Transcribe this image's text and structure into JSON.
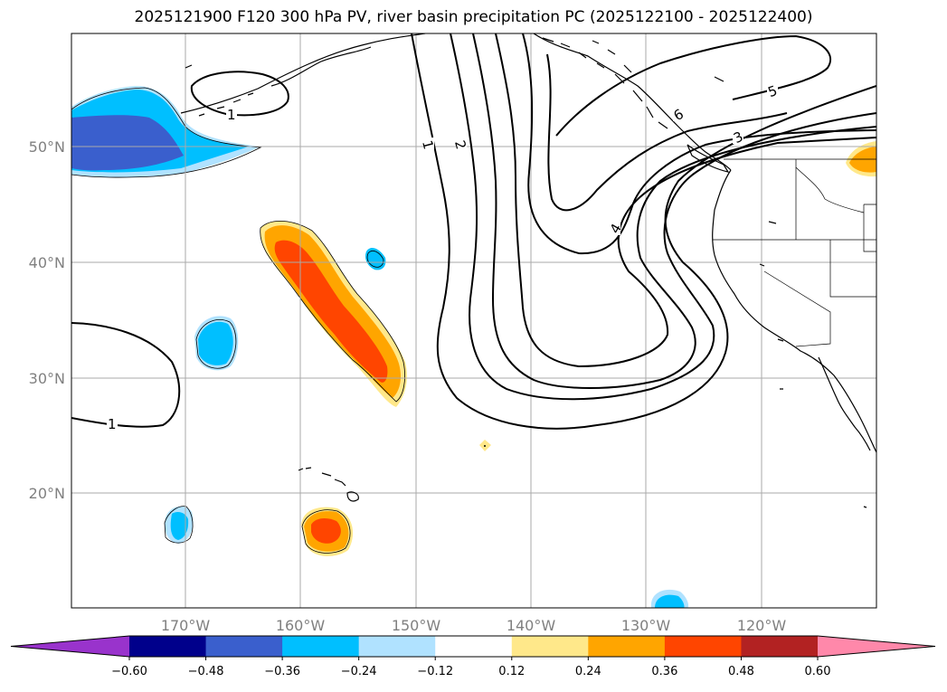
{
  "title": "2025121900 F120 300 hPa PV, river basin precipitation PC (2025122100 - 2025122400)",
  "lon_ticks": [
    "170°W",
    "160°W",
    "150°W",
    "140°W",
    "130°W",
    "120°W"
  ],
  "lat_ticks": [
    "50°N",
    "40°N",
    "30°N",
    "20°N"
  ],
  "pv_contour_labels": [
    "1",
    "1",
    "1",
    "2",
    "4",
    "6",
    "3",
    "5"
  ],
  "colorbar": {
    "labels": [
      "−0.60",
      "−0.48",
      "−0.36",
      "−0.24",
      "−0.12",
      "0.12",
      "0.24",
      "0.36",
      "0.48",
      "0.60"
    ],
    "colors": [
      "#9933cc",
      "#00008b",
      "#3a5fcd",
      "#00bfff",
      "#b0e2ff",
      "#ffffff",
      "#ffe88a",
      "#ffa500",
      "#ff4500",
      "#b22222",
      "#ff88aa"
    ]
  },
  "colors": {
    "pv_contour": "#000000",
    "grid": "#aaaaaa",
    "coast": "#000000"
  }
}
